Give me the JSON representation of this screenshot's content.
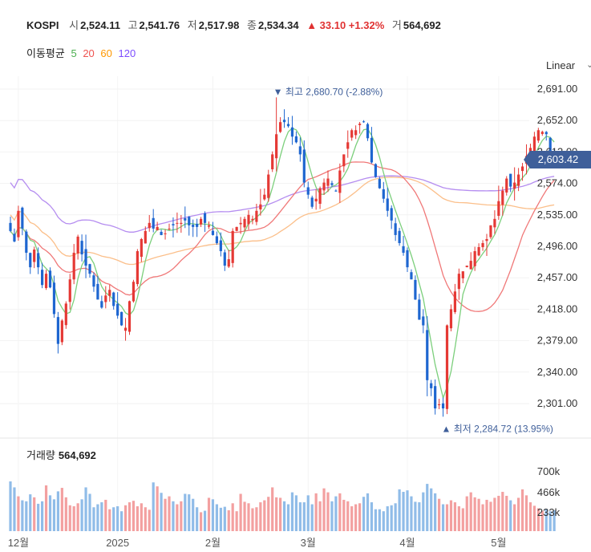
{
  "header": {
    "symbol": "KOSPI",
    "open_label": "시",
    "open": "2,524.11",
    "high_label": "고",
    "high": "2,541.76",
    "low_label": "저",
    "low": "2,517.98",
    "close_label": "종",
    "close": "2,534.34",
    "change": "▲ 33.10 +1.32%",
    "volume_label": "거",
    "volume": "564,692"
  },
  "moving_average": {
    "label": "이동평균",
    "periods": [
      "5",
      "20",
      "60",
      "120"
    ],
    "colors": [
      "#4caf50",
      "#ef5350",
      "#ff9800",
      "#7c4dff"
    ]
  },
  "scale_label": "Linear",
  "colors": {
    "up": "#e53935",
    "down": "#1e66d0",
    "vol_up": "#f3a0a0",
    "vol_down": "#90bce8",
    "accent": "#3f5f9a",
    "ma5": "#7ccf7c",
    "ma20": "#f07878",
    "ma60": "#fbbf8a",
    "ma120": "#b58df0"
  },
  "volume_panel": {
    "label": "거래량",
    "value": "564,692",
    "ticks": [
      "700k",
      "466k",
      "233k"
    ]
  },
  "chart_data": {
    "type": "candlestick",
    "title": "KOSPI",
    "y_ticks": [
      "2,691.00",
      "2,652.00",
      "2,613.00",
      "2,574.00",
      "2,535.00",
      "2,496.00",
      "2,457.00",
      "2,418.00",
      "2,379.00",
      "2,340.00",
      "2,301.00"
    ],
    "ylim": [
      2270,
      2712
    ],
    "x_labels": [
      "12월",
      "2025",
      "2월",
      "3월",
      "4월",
      "5월"
    ],
    "x_label_index": [
      2,
      27,
      51,
      75,
      100,
      123
    ],
    "last_price_label": "2,603.42",
    "last_price": 2603.42,
    "high_marker": {
      "label": "▼ 최고 2,680.70 (-2.88%)",
      "index": 67,
      "value": 2680.7
    },
    "low_marker": {
      "label": "▲ 최저 2,284.72 (13.95%)",
      "index": 109,
      "value": 2284.72
    },
    "closes": [
      2515,
      2502,
      2540,
      2518,
      2488,
      2470,
      2492,
      2470,
      2448,
      2462,
      2445,
      2412,
      2375,
      2404,
      2425,
      2455,
      2488,
      2508,
      2486,
      2472,
      2462,
      2446,
      2430,
      2420,
      2435,
      2442,
      2422,
      2410,
      2398,
      2395,
      2428,
      2452,
      2490,
      2505,
      2515,
      2525,
      2518,
      2520,
      2510,
      2512,
      2518,
      2522,
      2525,
      2525,
      2528,
      2522,
      2520,
      2520,
      2530,
      2525,
      2522,
      2510,
      2500,
      2490,
      2472,
      2480,
      2515,
      2520,
      2525,
      2530,
      2535,
      2530,
      2540,
      2548,
      2560,
      2585,
      2610,
      2635,
      2650,
      2650,
      2645,
      2632,
      2625,
      2610,
      2575,
      2560,
      2545,
      2555,
      2568,
      2575,
      2580,
      2572,
      2565,
      2590,
      2610,
      2625,
      2640,
      2640,
      2648,
      2650,
      2630,
      2600,
      2582,
      2568,
      2555,
      2540,
      2528,
      2510,
      2500,
      2488,
      2470,
      2455,
      2430,
      2405,
      2398,
      2330,
      2320,
      2295,
      2300,
      2295,
      2398,
      2418,
      2440,
      2462,
      2465,
      2472,
      2478,
      2490,
      2495,
      2500,
      2505,
      2522,
      2530,
      2552,
      2565,
      2580,
      2570,
      2575,
      2585,
      2595,
      2608,
      2618,
      2632,
      2640,
      2638,
      2635,
      2610,
      2603
    ],
    "volume_relative": [
      1.0,
      0.88,
      0.7,
      0.62,
      0.6,
      0.74,
      0.68,
      0.55,
      0.6,
      0.92,
      0.72,
      0.64,
      0.8,
      0.87,
      0.68,
      0.52,
      0.5,
      0.56,
      0.64,
      0.88,
      0.75,
      0.48,
      0.54,
      0.58,
      0.63,
      0.44,
      0.48,
      0.5,
      0.4,
      0.52,
      0.58,
      0.61,
      0.5,
      0.56,
      0.48,
      0.43,
      0.98,
      0.9,
      0.77,
      0.65,
      0.7,
      0.6,
      0.54,
      0.6,
      0.75,
      0.74,
      0.65,
      0.48,
      0.38,
      0.41,
      0.67,
      0.64,
      0.54,
      0.47,
      0.49,
      0.42,
      0.56,
      0.4,
      0.75,
      0.59,
      0.56,
      0.46,
      0.48,
      0.58,
      0.62,
      0.69,
      0.88,
      0.68,
      0.67,
      0.6,
      0.54,
      0.78,
      0.72,
      0.58,
      0.58,
      0.72,
      0.54,
      0.76,
      0.6,
      0.86,
      0.78,
      0.6,
      0.7,
      0.76,
      0.63,
      0.6,
      0.5,
      0.54,
      0.56,
      0.69,
      0.76,
      0.58,
      0.44,
      0.44,
      0.4,
      0.5,
      0.52,
      0.56,
      0.84,
      0.79,
      0.82,
      0.7,
      0.59,
      0.58,
      0.78,
      0.95,
      0.86,
      0.76,
      0.65,
      0.54,
      0.54,
      0.62,
      0.58,
      0.5,
      0.46,
      0.7,
      0.78,
      0.68,
      0.65,
      0.54,
      0.63,
      0.59,
      0.67,
      0.71,
      0.79,
      0.71,
      0.62,
      0.54,
      0.67,
      0.84,
      0.72,
      0.58,
      0.51,
      0.46,
      0.41,
      0.45,
      0.4,
      0.42
    ]
  }
}
